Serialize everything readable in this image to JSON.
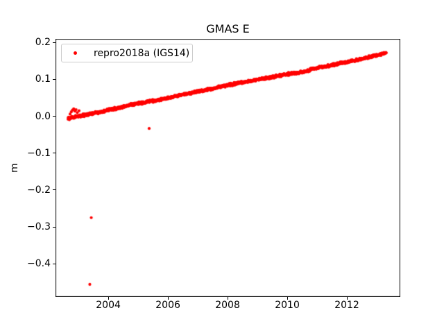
{
  "figure": {
    "background": "#ffffff",
    "axes_color": "#000000"
  },
  "chart_data": {
    "type": "scatter",
    "title": "GMAS E",
    "xlabel": "",
    "ylabel": "m",
    "grid": false,
    "xlim": [
      2002.23,
      2013.79
    ],
    "ylim": [
      -0.49,
      0.21
    ],
    "xticks": [
      {
        "value": 2004,
        "label": "2004"
      },
      {
        "value": 2006,
        "label": "2006"
      },
      {
        "value": 2008,
        "label": "2008"
      },
      {
        "value": 2010,
        "label": "2010"
      },
      {
        "value": 2012,
        "label": "2012"
      }
    ],
    "yticks": [
      {
        "value": 0.2,
        "label": "0.2"
      },
      {
        "value": 0.1,
        "label": "0.1"
      },
      {
        "value": 0.0,
        "label": "0.0"
      },
      {
        "value": -0.1,
        "label": "−0.1"
      },
      {
        "value": -0.2,
        "label": "−0.2"
      },
      {
        "value": -0.3,
        "label": "−0.3"
      },
      {
        "value": -0.4,
        "label": "−0.4"
      }
    ],
    "legend": {
      "position": "upper left",
      "entries": [
        {
          "label": "repro2018a (IGS14)",
          "marker": "dot",
          "marker_color": "#ff0000"
        }
      ]
    },
    "series": [
      {
        "name": "repro2018a (IGS14)",
        "color": "#ff0000",
        "marker": "dot",
        "marker_diameter_px": 4,
        "trend": {
          "start_year": 2002.65,
          "end_year": 2013.32,
          "start_m": -0.006,
          "end_m": 0.172,
          "rate_m_per_year": 0.0167
        },
        "scatter_band_m": 0.0045,
        "anchor_points": [
          [
            2002.65,
            -0.006
          ],
          [
            2002.8,
            -0.004
          ],
          [
            2003.0,
            0.0
          ],
          [
            2003.25,
            0.004
          ],
          [
            2003.5,
            0.008
          ],
          [
            2003.75,
            0.012
          ],
          [
            2004.0,
            0.017
          ],
          [
            2004.25,
            0.021
          ],
          [
            2004.5,
            0.025
          ],
          [
            2004.85,
            0.033
          ],
          [
            2005.1,
            0.036
          ],
          [
            2005.4,
            0.04
          ],
          [
            2005.7,
            0.045
          ],
          [
            2006.0,
            0.05
          ],
          [
            2006.3,
            0.055
          ],
          [
            2006.6,
            0.06
          ],
          [
            2007.0,
            0.067
          ],
          [
            2007.4,
            0.073
          ],
          [
            2007.8,
            0.081
          ],
          [
            2008.1,
            0.086
          ],
          [
            2008.35,
            0.09
          ],
          [
            2008.7,
            0.094
          ],
          [
            2009.0,
            0.099
          ],
          [
            2009.4,
            0.105
          ],
          [
            2009.8,
            0.111
          ],
          [
            2010.2,
            0.117
          ],
          [
            2010.6,
            0.122
          ],
          [
            2011.0,
            0.132
          ],
          [
            2011.4,
            0.137
          ],
          [
            2011.8,
            0.144
          ],
          [
            2012.2,
            0.15
          ],
          [
            2012.6,
            0.157
          ],
          [
            2013.0,
            0.166
          ],
          [
            2013.15,
            0.169
          ],
          [
            2013.32,
            0.172
          ]
        ],
        "early_cluster": [
          [
            2002.72,
            0.006
          ],
          [
            2002.76,
            0.012
          ],
          [
            2002.8,
            0.017
          ],
          [
            2002.84,
            0.02
          ],
          [
            2002.88,
            0.014
          ],
          [
            2002.92,
            0.018
          ],
          [
            2002.96,
            0.01
          ],
          [
            2003.02,
            0.015
          ]
        ],
        "outliers": [
          [
            2003.38,
            -0.456
          ],
          [
            2003.43,
            -0.275
          ],
          [
            2005.37,
            -0.033
          ]
        ]
      }
    ]
  }
}
